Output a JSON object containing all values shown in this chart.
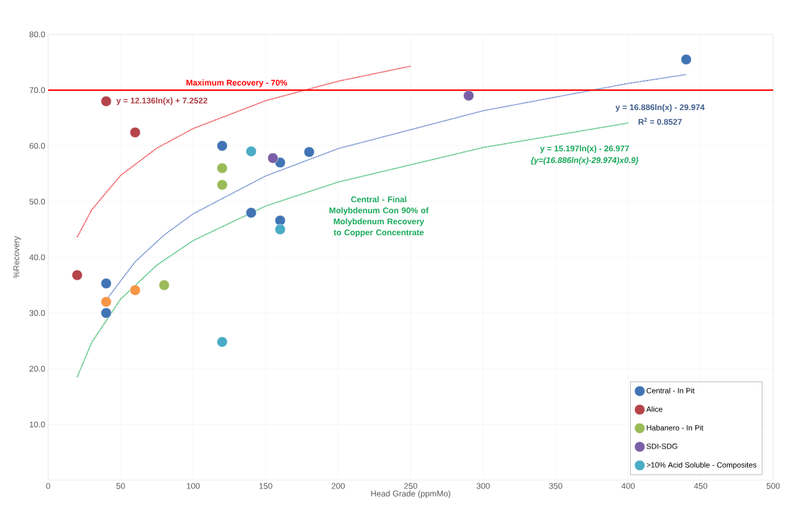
{
  "chart_data": {
    "type": "scatter",
    "xlabel": "Head Grade (ppmMo)",
    "ylabel": "%Recovery",
    "xlim": [
      0,
      500
    ],
    "xticks": [
      0,
      50,
      100,
      150,
      200,
      250,
      300,
      350,
      400,
      450,
      500
    ],
    "ylim": [
      0,
      80
    ],
    "yticks": [
      {
        "value": 10,
        "label": "10.0"
      },
      {
        "value": 20,
        "label": "20.0"
      },
      {
        "value": 30,
        "label": "30.0"
      },
      {
        "value": 40,
        "label": "40.0"
      },
      {
        "value": 50,
        "label": "50.0"
      },
      {
        "value": 60,
        "label": "60.0"
      },
      {
        "value": 70,
        "label": "70.0"
      },
      {
        "value": 80,
        "label": "80.0"
      }
    ],
    "grid": true,
    "legend": "bottom right",
    "marker": "circle",
    "series": [
      {
        "name": "Central - In Pit",
        "color": "#4174b5",
        "x": [
          40,
          40,
          120,
          140,
          160,
          160,
          180,
          440
        ],
        "values": [
          35.3,
          30.0,
          60.0,
          48.0,
          46.6,
          57.0,
          58.9,
          75.5
        ]
      },
      {
        "name": "Alice",
        "color": "#b5434a",
        "x": [
          20,
          40,
          60
        ],
        "values": [
          36.8,
          68.0,
          62.4
        ]
      },
      {
        "name": "Habanero - In Pit",
        "color": "#9bbb59",
        "x": [
          120,
          120,
          80
        ],
        "values": [
          56.0,
          53.0,
          35.0
        ]
      },
      {
        "name": "SDI-SDG",
        "color": "#7b5fa6",
        "x": [
          155,
          290
        ],
        "values": [
          57.8,
          69.0
        ]
      },
      {
        "name": ">10% Acid Soluble - Composites",
        "color": "#4aacc5",
        "x": [
          140,
          160,
          120
        ],
        "values": [
          59.0,
          45.0,
          24.8
        ]
      },
      {
        "color": "#f79646",
        "x": [
          40,
          60
        ],
        "values": [
          32.0,
          34.1
        ]
      },
      {
        "type": "line",
        "color": "#e8242e",
        "line_style": "dotted",
        "marker": "none",
        "x": [
          20,
          30,
          50,
          75,
          100,
          150,
          200,
          250
        ],
        "values": [
          43.6,
          48.5,
          54.7,
          59.6,
          63.1,
          68.1,
          71.6,
          74.3
        ]
      },
      {
        "type": "line",
        "color": "#4a6fc0",
        "line_style": "dotted",
        "marker": "none",
        "x": [
          40,
          60,
          80,
          100,
          150,
          200,
          300,
          400,
          440
        ],
        "values": [
          32.3,
          39.2,
          44.0,
          47.8,
          54.6,
          59.5,
          66.3,
          71.2,
          72.8
        ]
      },
      {
        "type": "line",
        "color": "#1fb05a",
        "line_style": "dotted",
        "marker": "none",
        "x": [
          20,
          30,
          50,
          75,
          100,
          150,
          200,
          300,
          400
        ],
        "values": [
          18.5,
          24.7,
          32.5,
          38.6,
          43.0,
          49.2,
          53.5,
          59.7,
          64.1
        ]
      }
    ],
    "ref_lines": [
      {
        "axis": "y",
        "value": 70,
        "label": "Maximum Recovery - 70%",
        "color": "#ff0000"
      }
    ],
    "annotations": [
      {
        "text": "y = 12.136ln(x) + 7.2522",
        "x": 45,
        "y": 68
      },
      "y = 16.886ln(x) - 29.974",
      "R$^{2}$ = 0.8527",
      "y = 15.197ln(x) - 26.977",
      "*{y=(16.886ln(x)-29.974)x0.9}*",
      "Central - Final Molybdenum Con 90% of Molybdenum Recovery to Copper Concentrate"
    ]
  }
}
